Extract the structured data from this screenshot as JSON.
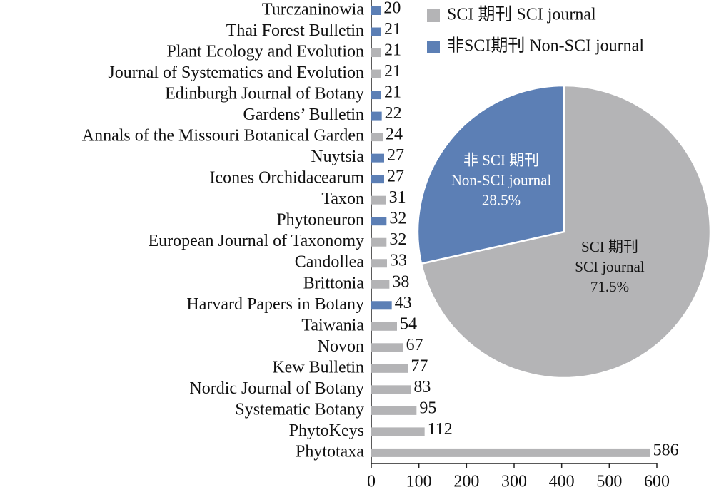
{
  "chart_data": [
    {
      "type": "bar",
      "orientation": "horizontal",
      "categories": [
        "Turczaninowia",
        "Thai Forest Bulletin",
        "Plant Ecology and Evolution",
        "Journal of Systematics and Evolution",
        "Edinburgh Journal of Botany",
        "Gardens’ Bulletin",
        "Annals of the Missouri Botanical Garden",
        "Nuytsia",
        "Icones Orchidacearum",
        "Taxon",
        "Phytoneuron",
        "European Journal of Taxonomy",
        "Candollea",
        "Brittonia",
        "Harvard Papers in Botany",
        "Taiwania",
        "Novon",
        "Kew Bulletin",
        "Nordic Journal of Botany",
        "Systematic Botany",
        "PhytoKeys",
        "Phytotaxa"
      ],
      "series": [
        {
          "name": "SCI 期刊 SCI journal",
          "color": "#b4b4b6",
          "values": [
            null,
            null,
            21,
            21,
            null,
            null,
            24,
            null,
            null,
            31,
            null,
            32,
            33,
            38,
            null,
            54,
            67,
            77,
            83,
            95,
            112,
            586
          ]
        },
        {
          "name": "非SCI期刊 Non-SCI journal",
          "color": "#5c7fb5",
          "values": [
            20,
            21,
            null,
            null,
            21,
            22,
            null,
            27,
            27,
            null,
            32,
            null,
            null,
            null,
            43,
            null,
            null,
            null,
            null,
            null,
            null,
            null
          ]
        }
      ],
      "xlim": [
        0,
        600
      ],
      "xticks": [
        0,
        100,
        200,
        300,
        400,
        500,
        600
      ]
    },
    {
      "type": "pie",
      "categories": [
        [
          "SCI 期刊",
          "SCI journal"
        ],
        [
          "非 SCI 期刊",
          "Non-SCI journal"
        ]
      ],
      "values": [
        71.5,
        28.5
      ],
      "value_labels": [
        "71.5%",
        "28.5%"
      ],
      "colors": [
        "#b4b4b6",
        "#5c7fb5"
      ]
    }
  ]
}
